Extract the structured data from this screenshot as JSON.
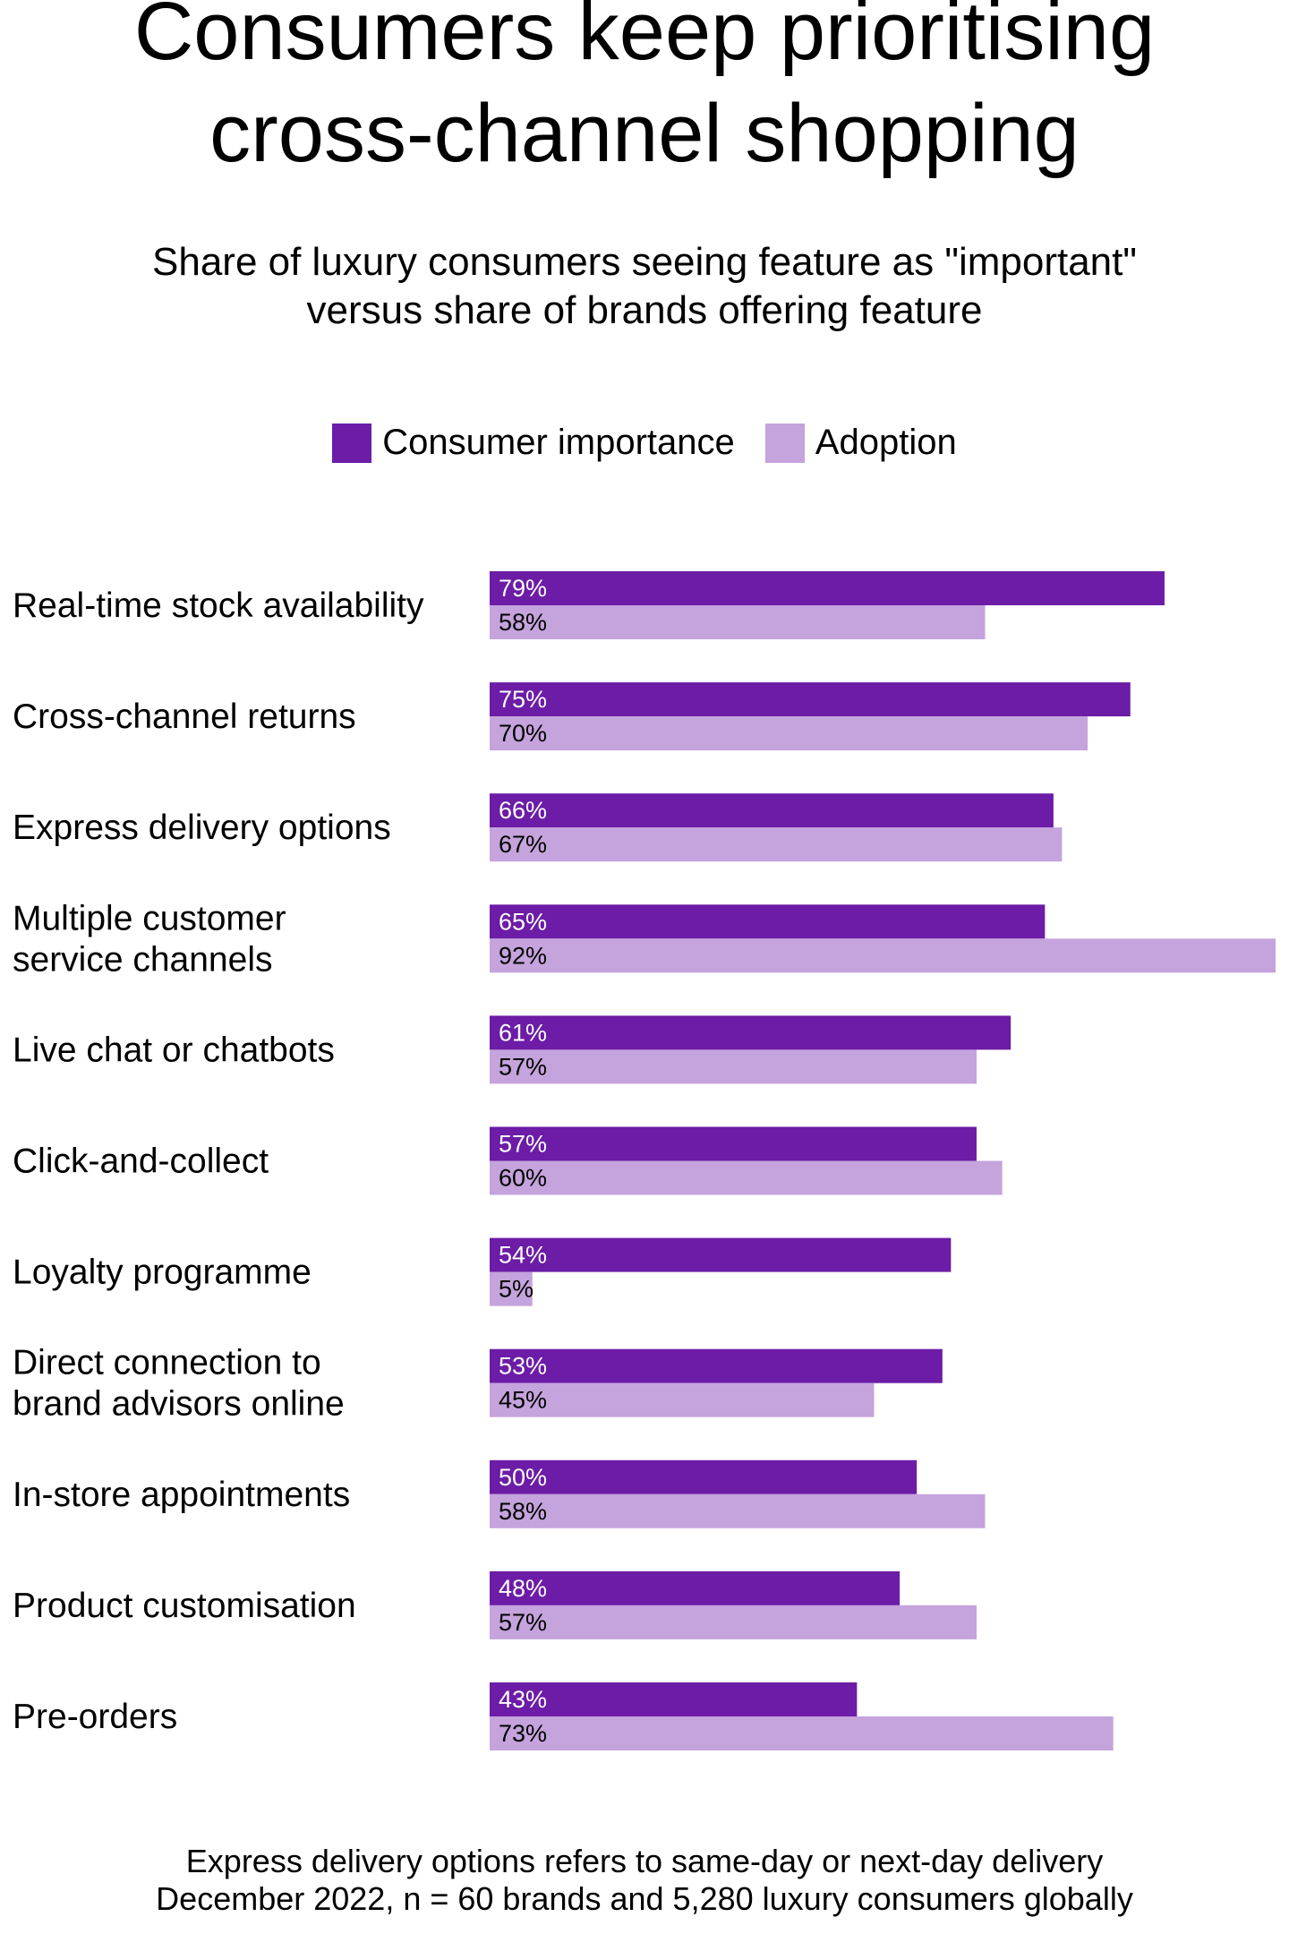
{
  "colors": {
    "importance": "#6C1CA6",
    "adoption": "#C5A3DC"
  },
  "chart_data": {
    "type": "bar",
    "orientation": "horizontal",
    "title": "Consumers keep prioritising\ncross-channel shopping",
    "subtitle": "Share of luxury consumers seeing feature as \"important\"\nversus share of brands offering feature",
    "legend_position": "top",
    "grid": false,
    "xlim": [
      0,
      92
    ],
    "categories": [
      "Real-time stock availability",
      "Cross-channel returns",
      "Express delivery options",
      "Multiple customer\nservice channels",
      "Live chat or chatbots",
      "Click-and-collect",
      "Loyalty programme",
      "Direct connection to\nbrand advisors online",
      "In-store appointments",
      "Product customisation",
      "Pre-orders"
    ],
    "series": [
      {
        "name": "Consumer importance",
        "values": [
          79,
          75,
          66,
          65,
          61,
          57,
          54,
          53,
          50,
          48,
          43
        ]
      },
      {
        "name": "Adoption",
        "values": [
          58,
          70,
          67,
          92,
          57,
          60,
          5,
          45,
          58,
          57,
          73
        ]
      }
    ],
    "value_suffix": "%"
  },
  "footer": {
    "line1": "Express delivery options refers to same-day or next-day delivery",
    "line2": "December 2022, n = 60 brands and 5,280 luxury consumers globally"
  }
}
